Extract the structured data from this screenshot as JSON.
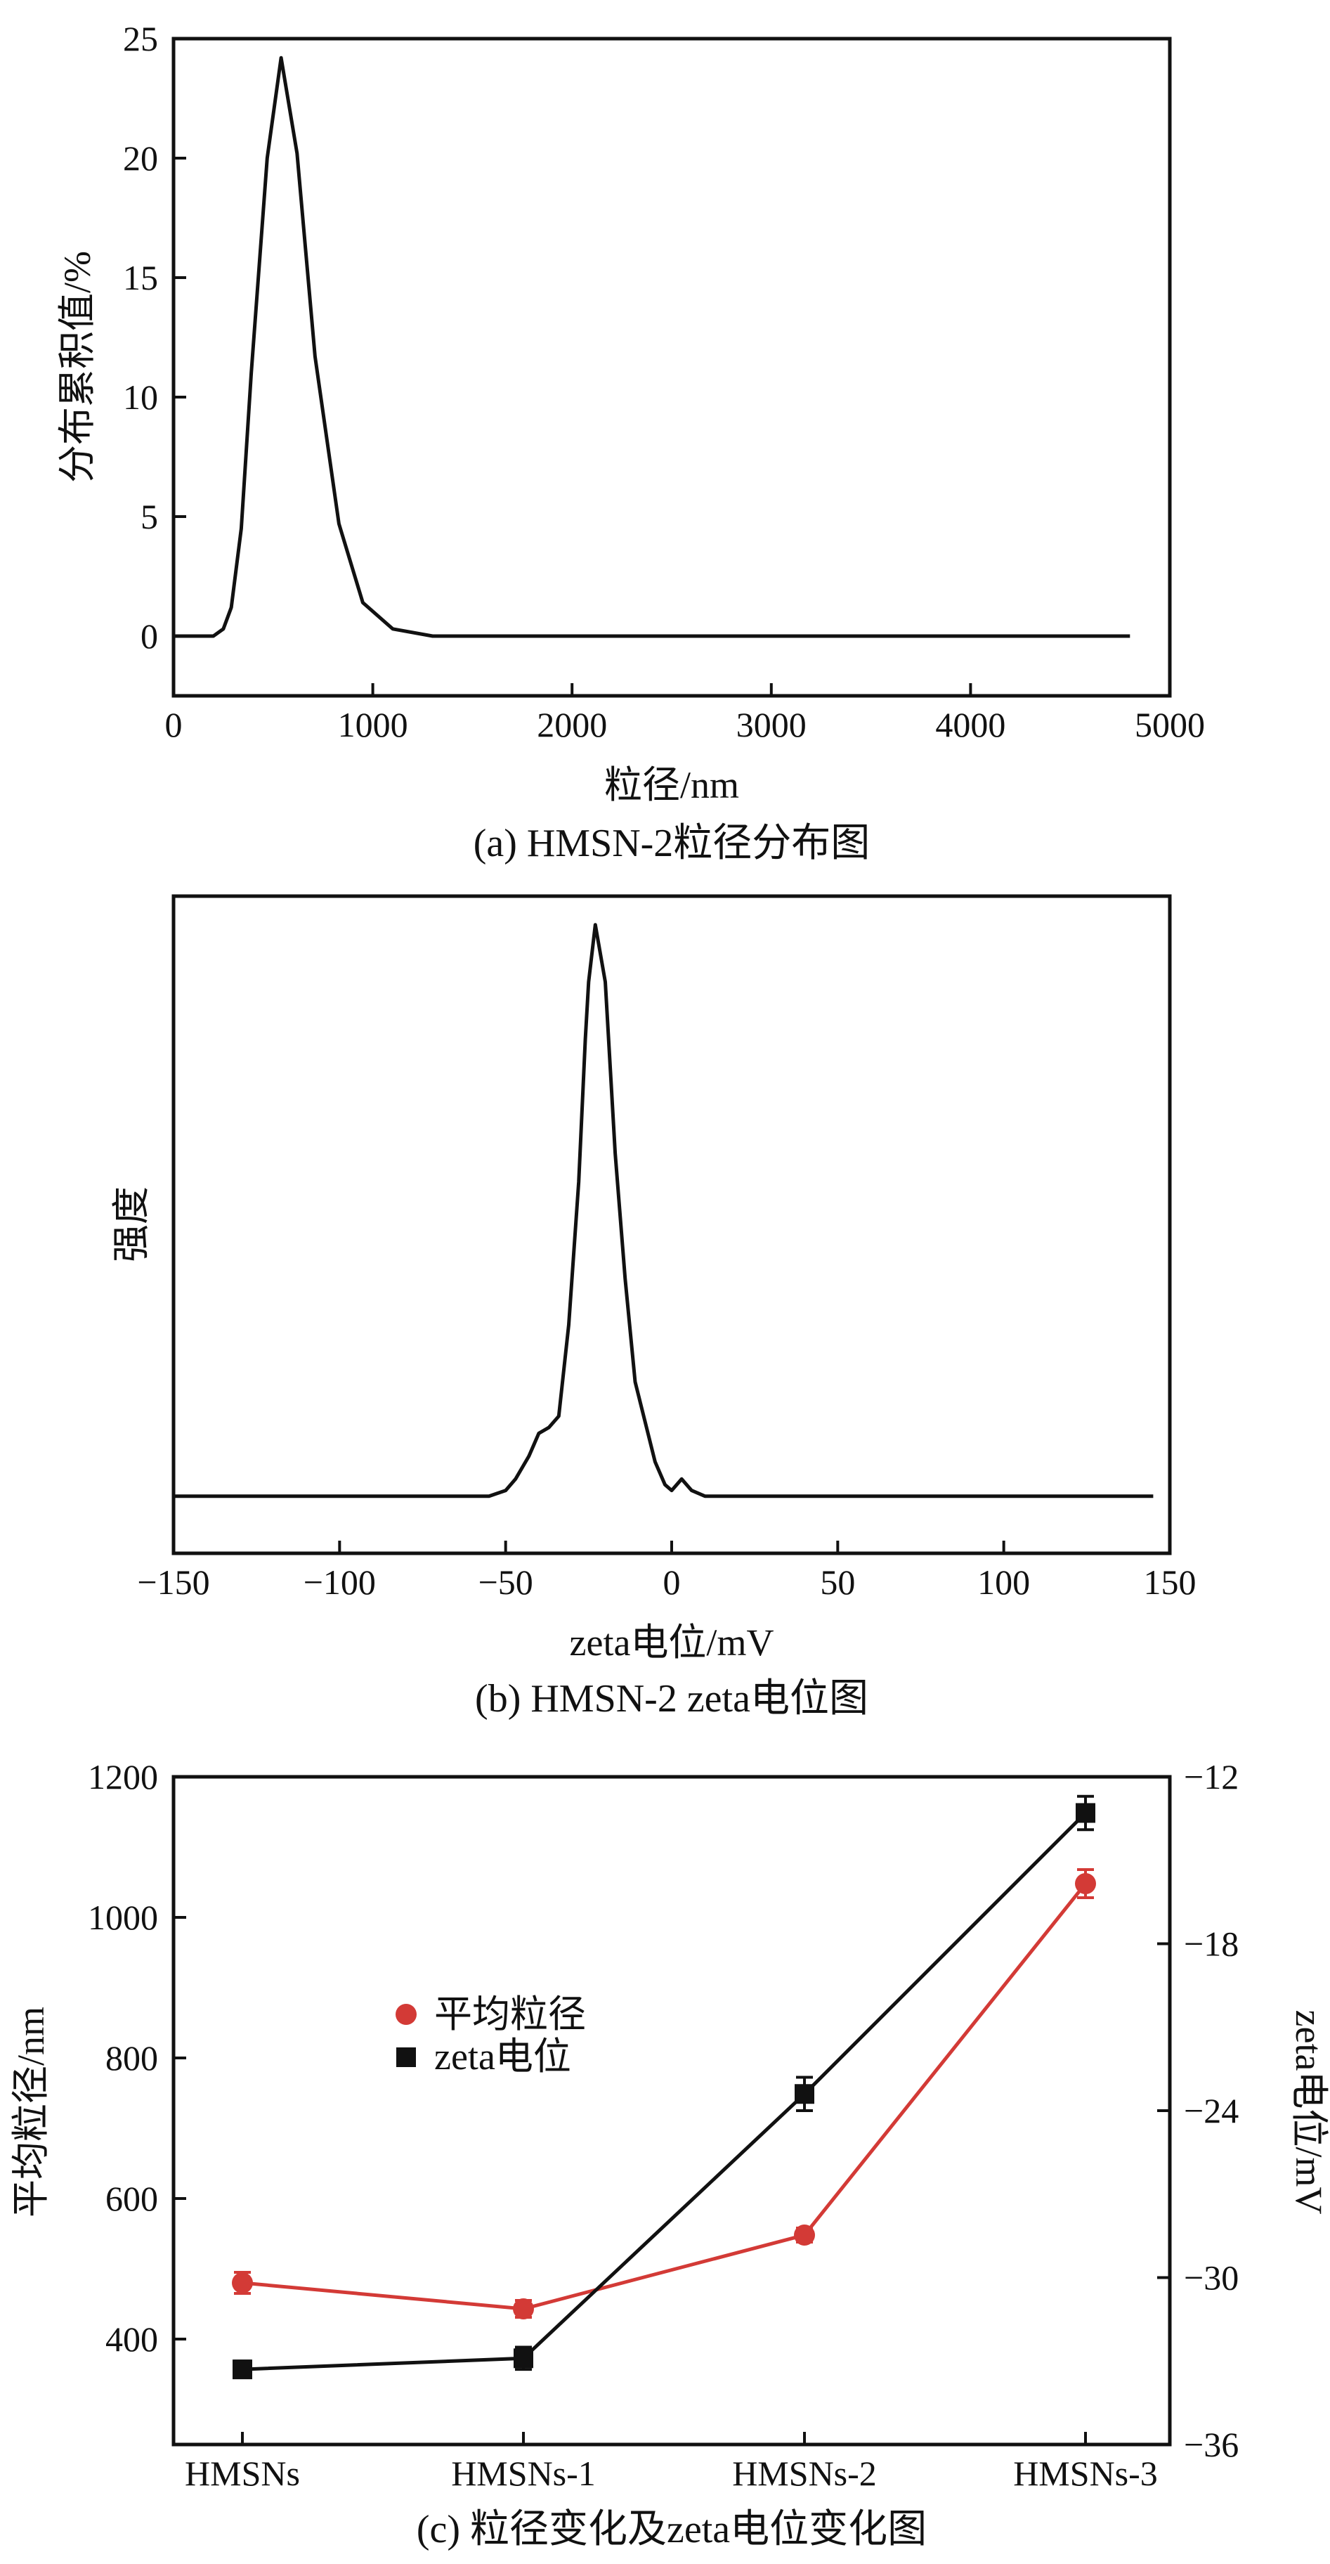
{
  "chart_data": [
    {
      "id": "a",
      "type": "line",
      "caption": "(a) HMSN-2粒径分布图",
      "xlabel": "粒径/nm",
      "ylabel": "分布累积值/%",
      "xlim": [
        0,
        5000
      ],
      "ylim": [
        -2.5,
        25
      ],
      "xticks": [
        0,
        1000,
        2000,
        3000,
        4000,
        5000
      ],
      "yticks": [
        0,
        5,
        10,
        15,
        20,
        25
      ],
      "x": [
        0,
        200,
        250,
        290,
        340,
        390,
        470,
        540,
        620,
        710,
        830,
        950,
        1100,
        1300,
        1500,
        2000,
        3000,
        4000,
        4800
      ],
      "y": [
        0,
        0,
        0.3,
        1.2,
        4.5,
        11,
        20,
        24.2,
        20.2,
        11.7,
        4.7,
        1.4,
        0.3,
        0,
        0,
        0,
        0,
        0,
        0
      ]
    },
    {
      "id": "b",
      "type": "line",
      "caption": "(b) HMSN-2 zeta电位图",
      "xlabel": "zeta电位/mV",
      "ylabel": "强度",
      "xlim": [
        -150,
        150
      ],
      "ylim": [
        -0.1,
        1.05
      ],
      "xticks": [
        -150,
        -100,
        -50,
        0,
        50,
        100,
        150
      ],
      "x": [
        -150,
        -55,
        -50,
        -47,
        -43,
        -40,
        -37,
        -34,
        -31,
        -28,
        -26,
        -25,
        -23,
        -20,
        -17,
        -14,
        -11,
        -8,
        -5,
        -2,
        0,
        3,
        6,
        10,
        15,
        145
      ],
      "y": [
        0,
        0,
        0.01,
        0.03,
        0.07,
        0.11,
        0.12,
        0.14,
        0.3,
        0.55,
        0.8,
        0.9,
        1.0,
        0.9,
        0.6,
        0.38,
        0.2,
        0.13,
        0.06,
        0.02,
        0.01,
        0.03,
        0.01,
        0,
        0,
        0
      ]
    },
    {
      "id": "c",
      "type": "line",
      "caption": "(c) 粒径变化及zeta电位变化图",
      "categories": [
        "HMSNs",
        "HMSNs-1",
        "HMSNs-2",
        "HMSNs-3"
      ],
      "ylabel_left": "平均粒径/nm",
      "ylabel_right": "zeta电位/mV",
      "ylim_left": [
        250,
        1200
      ],
      "ylim_right": [
        -36,
        -12
      ],
      "yticks_left": [
        400,
        600,
        800,
        1000,
        1200
      ],
      "yticks_right": [
        -36,
        -30,
        -24,
        -18,
        -12
      ],
      "legend_position": "center-left",
      "series": [
        {
          "name": "平均粒径",
          "axis": "left",
          "marker": "circle",
          "color": "#d33a36",
          "values": [
            480,
            443,
            548,
            1048
          ],
          "errors": [
            15,
            12,
            10,
            20
          ]
        },
        {
          "name": "zeta电位",
          "axis": "right",
          "marker": "square",
          "color": "#111111",
          "values": [
            -33.3,
            -32.9,
            -23.4,
            -13.3
          ],
          "errors": [
            0.3,
            0.4,
            0.6,
            0.6
          ]
        }
      ]
    }
  ]
}
